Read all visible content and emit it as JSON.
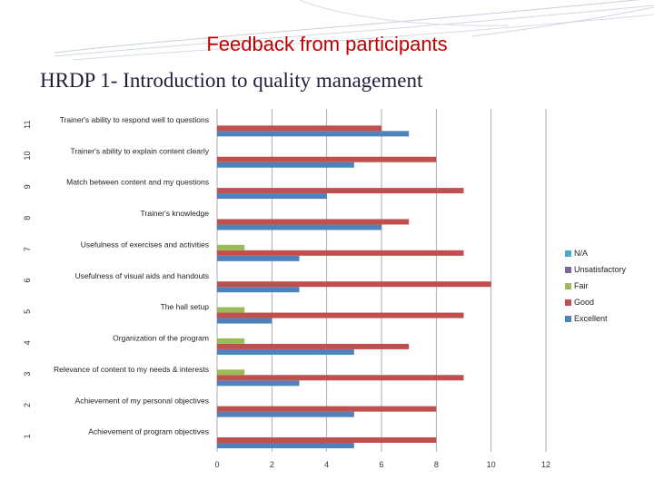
{
  "slide": {
    "title": "Feedback from participants",
    "subtitle": "HRDP 1- Introduction to quality management"
  },
  "chart_data": {
    "type": "bar",
    "orientation": "horizontal",
    "categories": [
      "Achievement of program objectives",
      "Achievement of my personal objectives",
      "Relevance of content to my needs & interests",
      "Organization of the program",
      "The hall setup",
      "Usefulness of visual aids and handouts",
      "Usefulness of exercises and activities",
      "Trainer's knowledge",
      "Match between content and my questions",
      "Trainer's ability to explain content clearly",
      "Trainer's ability to respond well to questions"
    ],
    "row_numbers": [
      "1",
      "2",
      "3",
      "4",
      "5",
      "6",
      "7",
      "8",
      "9",
      "10",
      "11"
    ],
    "series": [
      {
        "name": "N/A",
        "color": "#4bacc6",
        "values": [
          0,
          0,
          0,
          0,
          0,
          0,
          0,
          0,
          0,
          0,
          0
        ]
      },
      {
        "name": "Unsatisfactory",
        "color": "#8064a2",
        "values": [
          0,
          0,
          0,
          0,
          0,
          0,
          0,
          0,
          0,
          0,
          0
        ]
      },
      {
        "name": "Fair",
        "color": "#9bbb59",
        "values": [
          0,
          0,
          1,
          1,
          1,
          0,
          1,
          0,
          0,
          0,
          0
        ]
      },
      {
        "name": "Good",
        "color": "#c0504d",
        "values": [
          8,
          8,
          9,
          7,
          9,
          10,
          9,
          7,
          9,
          8,
          6
        ]
      },
      {
        "name": "Excellent",
        "color": "#4f81bd",
        "values": [
          5,
          5,
          3,
          5,
          2,
          3,
          3,
          6,
          4,
          5,
          7
        ]
      }
    ],
    "xlim": [
      0,
      12
    ],
    "xticks": [
      0,
      2,
      4,
      6,
      8,
      10,
      12
    ],
    "grid": true,
    "legend_position": "right"
  }
}
